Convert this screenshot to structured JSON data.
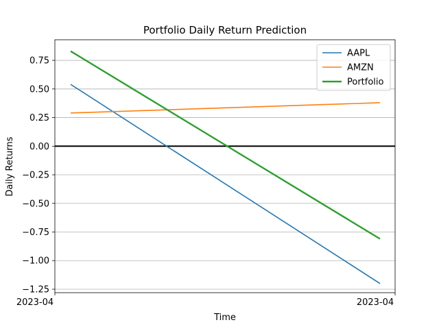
{
  "chart_data": {
    "type": "line",
    "title": "Portfolio Daily Return Prediction",
    "xlabel": "Time",
    "ylabel": "Daily Returns",
    "x_tick_labels": [
      "2023-04",
      "2023-04"
    ],
    "x": [
      "start",
      "end"
    ],
    "ylim": [
      -1.28,
      0.93
    ],
    "yticks": [
      0.75,
      0.5,
      0.25,
      0.0,
      -0.25,
      -0.5,
      -0.75,
      -1.0,
      -1.25
    ],
    "ytick_labels": [
      "0.75",
      "0.50",
      "0.25",
      "0.00",
      "−0.25",
      "−0.50",
      "−0.75",
      "−1.00",
      "−1.25"
    ],
    "grid": "horizontal",
    "reference_line": 0.0,
    "legend_position": "top-right",
    "series": [
      {
        "name": "AAPL",
        "color": "#1f77b4",
        "values": [
          0.54,
          -1.2
        ]
      },
      {
        "name": "AMZN",
        "color": "#ff7f0e",
        "values": [
          0.29,
          0.38
        ]
      },
      {
        "name": "Portfolio",
        "color": "#2ca02c",
        "values": [
          0.83,
          -0.81
        ]
      }
    ]
  }
}
